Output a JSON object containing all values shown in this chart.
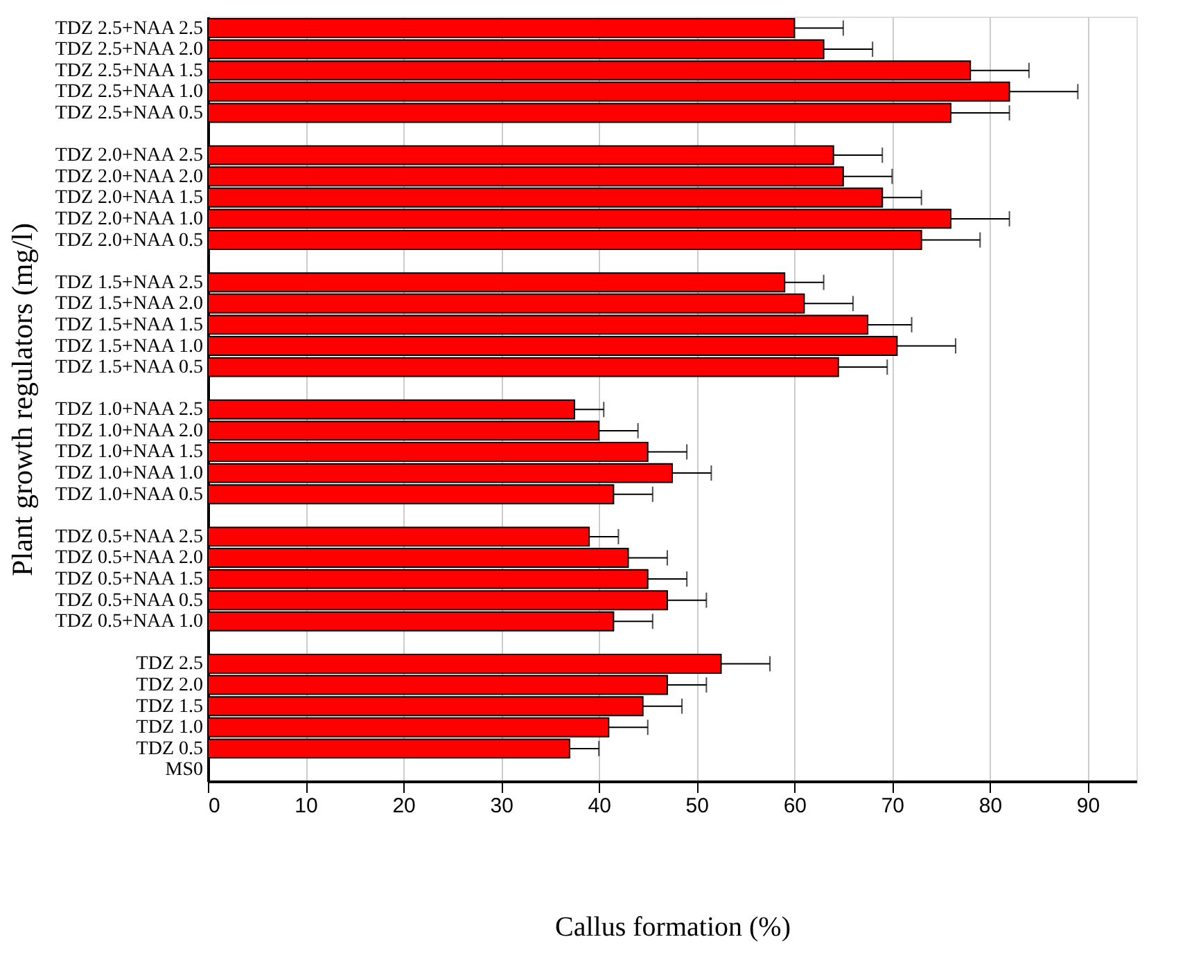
{
  "chart_data": {
    "type": "bar",
    "orientation": "horizontal",
    "xlabel": "Callus formation (%)",
    "ylabel": "Plant growth regulators (mg/l)",
    "categories": [
      "TDZ 2.5+NAA 2.5",
      "TDZ 2.5+NAA 2.0",
      "TDZ 2.5+NAA 1.5",
      "TDZ 2.5+NAA 1.0",
      "TDZ 2.5+NAA 0.5",
      null,
      "TDZ 2.0+NAA 2.5",
      "TDZ 2.0+NAA 2.0",
      "TDZ 2.0+NAA 1.5",
      "TDZ 2.0+NAA 1.0",
      "TDZ 2.0+NAA 0.5",
      null,
      "TDZ 1.5+NAA 2.5",
      "TDZ 1.5+NAA 2.0",
      "TDZ 1.5+NAA 1.5",
      "TDZ 1.5+NAA 1.0",
      "TDZ 1.5+NAA 0.5",
      null,
      "TDZ 1.0+NAA 2.5",
      "TDZ 1.0+NAA 2.0",
      "TDZ 1.0+NAA 1.5",
      "TDZ 1.0+NAA 1.0",
      "TDZ 1.0+NAA 0.5",
      null,
      "TDZ 0.5+NAA 2.5",
      "TDZ 0.5+NAA 2.0",
      "TDZ 0.5+NAA 1.5",
      "TDZ 0.5+NAA 0.5",
      "TDZ 0.5+NAA 1.0",
      null,
      "TDZ 2.5",
      "TDZ 2.0",
      "TDZ 1.5",
      "TDZ 1.0",
      "TDZ 0.5",
      "MS0"
    ],
    "series": [
      {
        "color": "#ff0000",
        "values": [
          60,
          63,
          78,
          82,
          76,
          null,
          64,
          65,
          69,
          76,
          73,
          null,
          59,
          61,
          67.5,
          70.5,
          64.5,
          null,
          37.5,
          40,
          45,
          47.5,
          41.5,
          null,
          39,
          43,
          45,
          47,
          41.5,
          null,
          52.5,
          47,
          44.5,
          41,
          37,
          null
        ],
        "errors": [
          [
            60,
            65
          ],
          [
            63,
            68
          ],
          [
            78,
            84
          ],
          [
            82,
            89
          ],
          [
            76,
            82
          ],
          null,
          [
            64,
            69
          ],
          [
            65,
            70
          ],
          [
            69,
            73
          ],
          [
            76,
            82
          ],
          [
            73,
            79
          ],
          null,
          [
            59,
            63
          ],
          [
            61,
            66
          ],
          [
            67.5,
            72
          ],
          [
            70.5,
            76.5
          ],
          [
            64.5,
            69.5
          ],
          null,
          [
            37.5,
            40.5
          ],
          [
            40,
            44
          ],
          [
            45,
            49
          ],
          [
            47.5,
            51.5
          ],
          [
            41.5,
            45.5
          ],
          null,
          [
            39,
            42
          ],
          [
            43,
            47
          ],
          [
            45,
            49
          ],
          [
            47,
            51
          ],
          [
            41.5,
            45.5
          ],
          null,
          [
            52.5,
            57.5
          ],
          [
            47,
            51
          ],
          [
            44.5,
            48.5
          ],
          [
            41,
            45
          ],
          [
            37,
            40
          ],
          null
        ]
      }
    ],
    "xlim": [
      0,
      95
    ],
    "xticks": [
      0,
      10,
      20,
      30,
      40,
      50,
      60,
      70,
      80,
      90
    ],
    "grid": "x",
    "legend": false
  }
}
